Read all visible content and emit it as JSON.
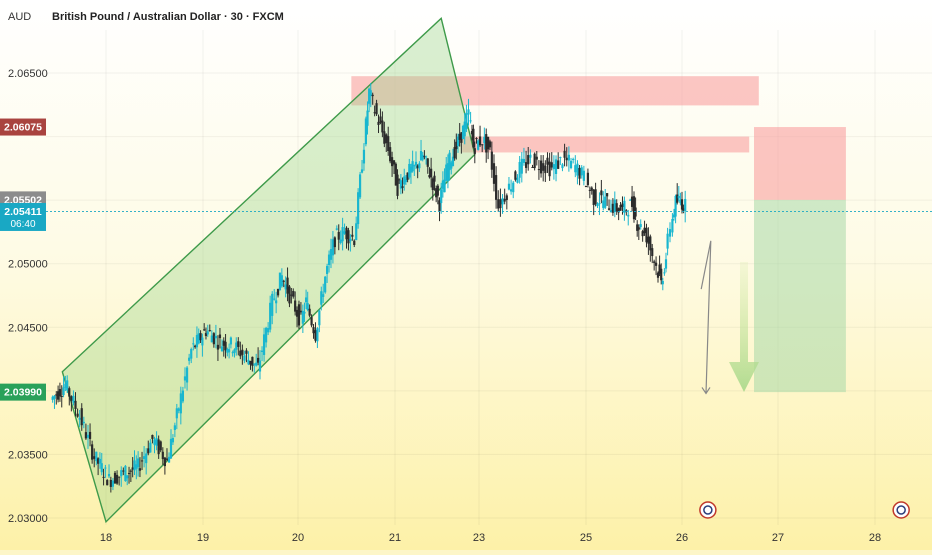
{
  "header": {
    "currency": "AUD",
    "symbol_title": "British Pound / Australian Dollar · 30 · FXCM"
  },
  "chart_data": {
    "type": "candlestick",
    "title": "British Pound / Australian Dollar · 30 · FXCM",
    "y_axis": {
      "unit": "AUD",
      "ticks": [
        2.03,
        2.035,
        2.04,
        2.045,
        2.05,
        2.055,
        2.06,
        2.065
      ],
      "tick_labels": [
        "2.03000",
        "2.03500",
        "",
        "2.04500",
        "2.05000",
        "",
        "",
        "2.06500"
      ]
    },
    "x_axis": {
      "ticks": [
        {
          "label": "18",
          "day": 18
        },
        {
          "label": "19",
          "day": 19
        },
        {
          "label": "20",
          "day": 20
        },
        {
          "label": "21",
          "day": 21
        },
        {
          "label": "23",
          "day": 22
        },
        {
          "label": "25",
          "day": 23
        },
        {
          "label": "26",
          "day": 24
        },
        {
          "label": "27",
          "day": 25
        },
        {
          "label": "28",
          "day": 26
        }
      ]
    },
    "price_badges": [
      {
        "label": "2.06075",
        "value": 2.06075,
        "color": "#a9433f"
      },
      {
        "label": "2.05502",
        "value": 2.05502,
        "color": "#8c8c8c"
      },
      {
        "label": "2.05411",
        "sublabel": "06:40",
        "value": 2.05411,
        "color": "#19a8c4"
      },
      {
        "label": "2.03990",
        "value": 2.0399,
        "color": "#2aa15a"
      }
    ],
    "current_price": 2.05411,
    "zones": [
      {
        "name": "supply-upper",
        "x0": 20.55,
        "x1": 24.8,
        "y0": 2.06245,
        "y1": 2.06475,
        "color": "#f8a0a0"
      },
      {
        "name": "supply-lower",
        "x0": 21.8,
        "x1": 24.7,
        "y0": 2.05875,
        "y1": 2.06,
        "color": "#f8a0a0"
      },
      {
        "name": "short-stop",
        "x0": 24.75,
        "x1": 25.7,
        "y0": 2.05502,
        "y1": 2.06075,
        "color": "#f8a0a0"
      },
      {
        "name": "short-target",
        "x0": 24.75,
        "x1": 25.7,
        "y0": 2.0399,
        "y1": 2.05502,
        "color": "#a8d8a8"
      }
    ],
    "channel": {
      "upper": [
        [
          17.55,
          2.0415
        ],
        [
          21.55,
          2.0693
        ]
      ],
      "lower": [
        [
          18.0,
          2.0297
        ],
        [
          21.95,
          2.0586
        ]
      ],
      "color": "#3e9a4a"
    },
    "projection_path": [
      [
        24.2,
        2.048
      ],
      [
        24.3,
        2.0518
      ],
      [
        24.25,
        2.0398
      ]
    ],
    "down_arrow_x": 24.62,
    "candles": []
  }
}
